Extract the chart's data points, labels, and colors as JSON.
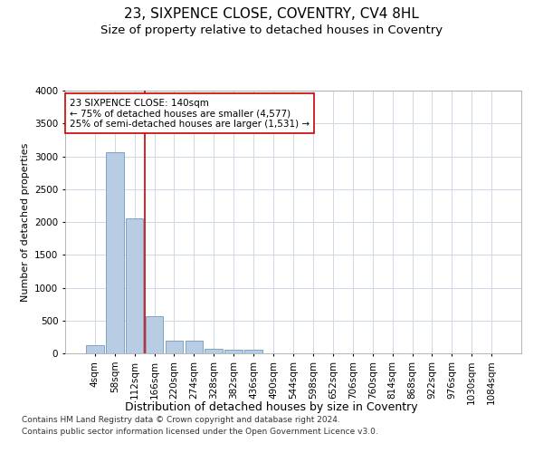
{
  "title": "23, SIXPENCE CLOSE, COVENTRY, CV4 8HL",
  "subtitle": "Size of property relative to detached houses in Coventry",
  "xlabel": "Distribution of detached houses by size in Coventry",
  "ylabel": "Number of detached properties",
  "footer_line1": "Contains HM Land Registry data © Crown copyright and database right 2024.",
  "footer_line2": "Contains public sector information licensed under the Open Government Licence v3.0.",
  "bar_categories": [
    "4sqm",
    "58sqm",
    "112sqm",
    "166sqm",
    "220sqm",
    "274sqm",
    "328sqm",
    "382sqm",
    "436sqm",
    "490sqm",
    "544sqm",
    "598sqm",
    "652sqm",
    "706sqm",
    "760sqm",
    "814sqm",
    "868sqm",
    "922sqm",
    "976sqm",
    "1030sqm",
    "1084sqm"
  ],
  "bar_values": [
    130,
    3060,
    2060,
    560,
    195,
    195,
    75,
    55,
    50,
    0,
    0,
    0,
    0,
    0,
    0,
    0,
    0,
    0,
    0,
    0,
    0
  ],
  "bar_color": "#b8cce4",
  "bar_edge_color": "#7099be",
  "grid_color": "#d0d8e8",
  "vline_x": 2.5,
  "vline_color": "#cc0000",
  "annotation_text": "23 SIXPENCE CLOSE: 140sqm\n← 75% of detached houses are smaller (4,577)\n25% of semi-detached houses are larger (1,531) →",
  "annotation_box_color": "#cc0000",
  "ylim": [
    0,
    4000
  ],
  "yticks": [
    0,
    500,
    1000,
    1500,
    2000,
    2500,
    3000,
    3500,
    4000
  ],
  "title_fontsize": 11,
  "subtitle_fontsize": 9.5,
  "xlabel_fontsize": 9,
  "ylabel_fontsize": 8,
  "tick_fontsize": 7.5,
  "annotation_fontsize": 7.5,
  "footer_fontsize": 6.5
}
